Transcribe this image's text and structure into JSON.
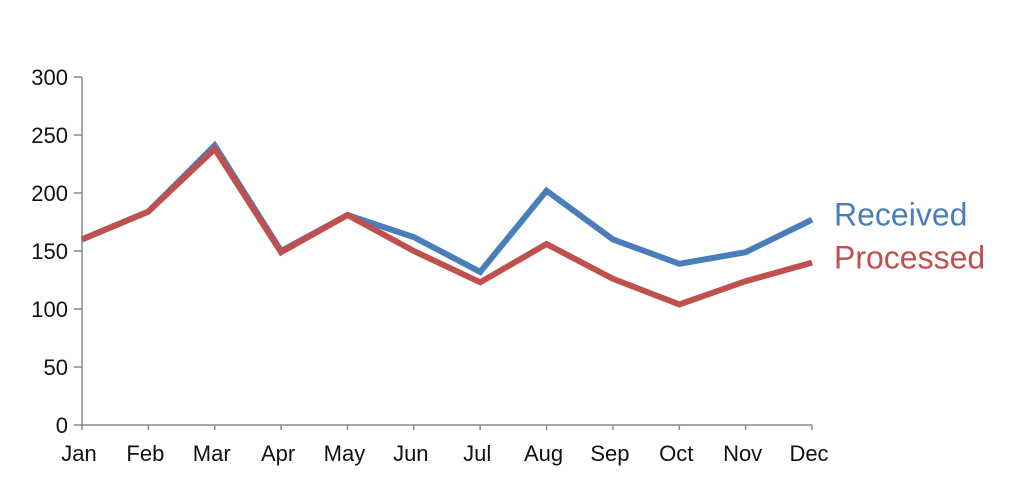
{
  "chart_data": {
    "type": "line",
    "categories": [
      "Jan",
      "Feb",
      "Mar",
      "Apr",
      "May",
      "Jun",
      "Jul",
      "Aug",
      "Sep",
      "Oct",
      "Nov",
      "Dec"
    ],
    "series": [
      {
        "name": "Received",
        "color": "#4a7ebb",
        "values": [
          160,
          184,
          241,
          150,
          181,
          162,
          132,
          202,
          160,
          139,
          149,
          177
        ]
      },
      {
        "name": "Processed",
        "color": "#c0504d",
        "values": [
          160,
          184,
          238,
          149,
          181,
          150,
          123,
          156,
          126,
          104,
          124,
          140
        ]
      }
    ],
    "yticks": [
      0,
      50,
      100,
      150,
      200,
      250,
      300
    ],
    "ylim": [
      0,
      300
    ],
    "title": "",
    "xlabel": "",
    "ylabel": "",
    "grid": false,
    "legend": "direct-labels-right"
  }
}
